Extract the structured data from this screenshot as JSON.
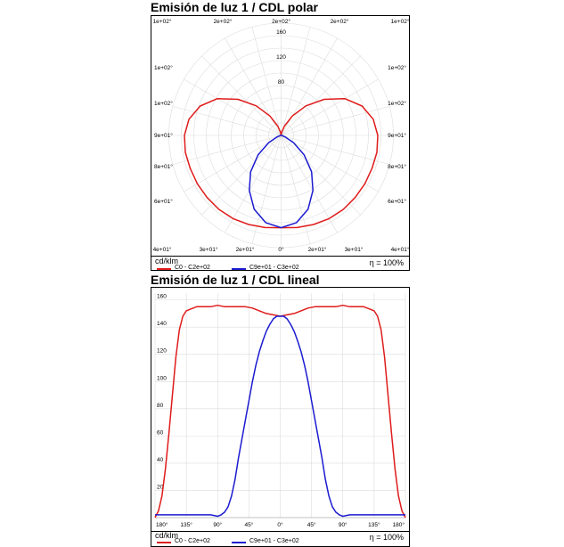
{
  "chart_data": [
    {
      "type": "polar",
      "title": "Emisión de luz 1 / CDL polar",
      "unit": "cd/klm",
      "efficiency": "η = 100%",
      "radial_ticks": [
        "80",
        "120",
        "160"
      ],
      "rmax": 180,
      "angle_labels_top": [
        "1e+02°",
        "2e+02°",
        "2e+02°",
        "2e+02°",
        "1e+02°"
      ],
      "angle_labels_left": [
        "1e+02°",
        "1e+02°",
        "9e+01°",
        "8e+01°",
        "6e+01°"
      ],
      "angle_labels_right": [
        "1e+02°",
        "1e+02°",
        "9e+01°",
        "8e+01°",
        "6e+01°"
      ],
      "angle_labels_bottom": [
        "4e+01°",
        "3e+01°",
        "2e+01°",
        "0°",
        "2e+01°",
        "3e+01°",
        "4e+01°"
      ],
      "series": [
        {
          "name": "C0 - C2e+02",
          "color": "#e01b1b",
          "angles": [
            0,
            10,
            20,
            30,
            40,
            50,
            60,
            70,
            80,
            90,
            100,
            110,
            120,
            130,
            140,
            150,
            160,
            170,
            180
          ],
          "values": [
            148,
            150,
            152,
            154,
            155,
            155,
            155,
            155,
            156,
            155,
            150,
            138,
            118,
            90,
            62,
            36,
            16,
            5,
            0
          ]
        },
        {
          "name": "C9e+01 - C3e+02",
          "color": "#1b1bd0",
          "angles": [
            0,
            10,
            20,
            30,
            40,
            50,
            60,
            70,
            80,
            90,
            100,
            180
          ],
          "values": [
            148,
            142,
            126,
            102,
            76,
            48,
            23,
            7,
            1.5,
            0.5,
            0,
            0
          ]
        }
      ]
    },
    {
      "type": "line",
      "title": "Emisión de luz 1 / CDL lineal",
      "unit": "cd/klm",
      "efficiency": "η = 100%",
      "x_ticks": [
        "180°",
        "135°",
        "90°",
        "45°",
        "0°",
        "45°",
        "90°",
        "135°",
        "180°"
      ],
      "y_ticks": [
        20,
        40,
        60,
        80,
        100,
        120,
        140,
        160
      ],
      "ylim": [
        0,
        165
      ],
      "series": [
        {
          "name": "C0 - C2e+02",
          "color": "#e01b1b",
          "x": [
            -180,
            -175,
            -170,
            -165,
            -160,
            -155,
            -150,
            -145,
            -140,
            -135,
            -130,
            -125,
            -120,
            -110,
            -100,
            -90,
            -80,
            -70,
            -60,
            -50,
            -40,
            -30,
            -20,
            -10,
            0,
            10,
            20,
            30,
            40,
            50,
            60,
            70,
            80,
            90,
            100,
            110,
            120,
            125,
            130,
            135,
            140,
            145,
            150,
            155,
            160,
            165,
            170,
            175,
            180
          ],
          "y": [
            0,
            5,
            16,
            36,
            62,
            90,
            118,
            138,
            148,
            152,
            153,
            154,
            155,
            155,
            155,
            156,
            155,
            155,
            155,
            155,
            154,
            152,
            150,
            149,
            148,
            149,
            150,
            152,
            154,
            155,
            155,
            155,
            155,
            156,
            155,
            155,
            155,
            154,
            153,
            152,
            148,
            138,
            118,
            90,
            62,
            36,
            16,
            5,
            0
          ]
        },
        {
          "name": "C9e+01 - C3e+02",
          "color": "#1b1bd0",
          "x": [
            -180,
            -100,
            -90,
            -85,
            -80,
            -75,
            -70,
            -65,
            -60,
            -55,
            -50,
            -45,
            -40,
            -35,
            -30,
            -25,
            -20,
            -15,
            -10,
            -5,
            0,
            5,
            10,
            15,
            20,
            25,
            30,
            35,
            40,
            45,
            50,
            55,
            60,
            65,
            70,
            75,
            80,
            85,
            90,
            100,
            180
          ],
          "y": [
            2,
            2,
            1,
            2,
            4,
            8,
            16,
            28,
            44,
            58,
            72,
            86,
            100,
            112,
            122,
            130,
            137,
            142,
            146,
            148,
            148,
            148,
            146,
            142,
            137,
            130,
            122,
            112,
            100,
            86,
            72,
            58,
            44,
            28,
            16,
            8,
            4,
            2,
            1,
            2,
            2
          ]
        }
      ]
    }
  ]
}
